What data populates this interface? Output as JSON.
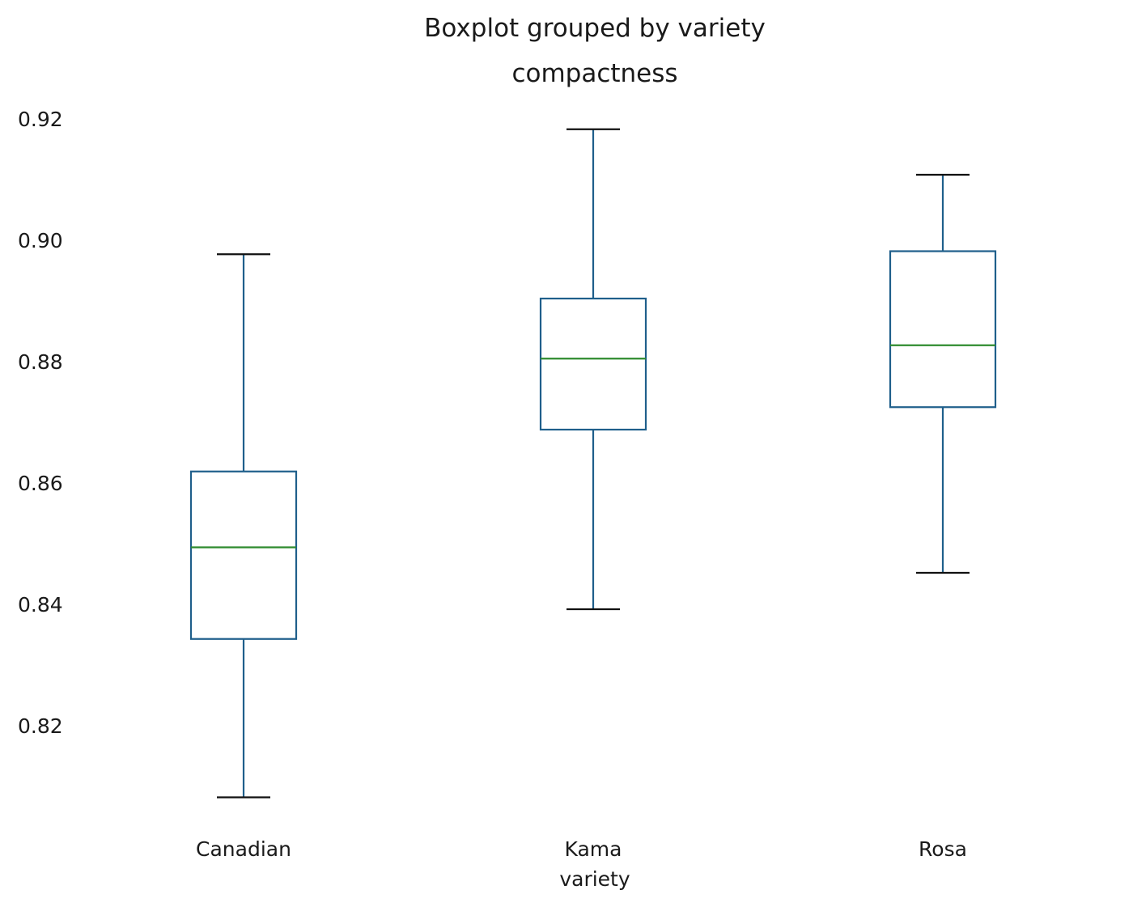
{
  "chart_data": {
    "type": "box",
    "suptitle": "Boxplot grouped by variety",
    "title": "compactness",
    "xlabel": "variety",
    "ylabel": "",
    "categories": [
      "Canadian",
      "Kama",
      "Rosa"
    ],
    "boxes": [
      {
        "category": "Canadian",
        "whisker_low": 0.8082,
        "q1": 0.8343,
        "median": 0.8494,
        "q3": 0.8619,
        "whisker_high": 0.8977
      },
      {
        "category": "Kama",
        "whisker_low": 0.8392,
        "q1": 0.8688,
        "median": 0.8805,
        "q3": 0.8904,
        "whisker_high": 0.9183
      },
      {
        "category": "Rosa",
        "whisker_low": 0.8452,
        "q1": 0.8725,
        "median": 0.8827,
        "q3": 0.8982,
        "whisker_high": 0.9108
      }
    ],
    "yticks": [
      "0.82",
      "0.84",
      "0.86",
      "0.88",
      "0.90",
      "0.92"
    ],
    "ylim": [
      0.8035,
      0.9215
    ],
    "grid": false,
    "colors": {
      "box": "#1f5f8b",
      "whisker": "#1f5f8b",
      "cap": "#111111",
      "median": "#2e8b2e"
    }
  }
}
